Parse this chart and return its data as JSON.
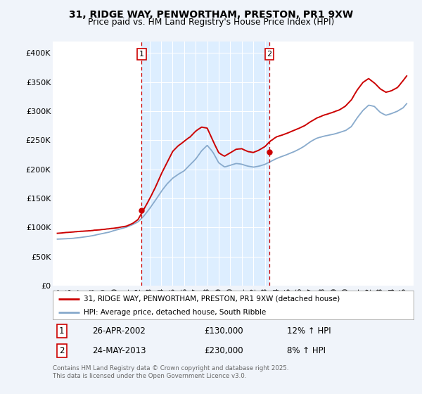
{
  "title": "31, RIDGE WAY, PENWORTHAM, PRESTON, PR1 9XW",
  "subtitle": "Price paid vs. HM Land Registry's House Price Index (HPI)",
  "legend_label_red": "31, RIDGE WAY, PENWORTHAM, PRESTON, PR1 9XW (detached house)",
  "legend_label_blue": "HPI: Average price, detached house, South Ribble",
  "sale1_date": "26-APR-2002",
  "sale1_price": 130000,
  "sale1_year": 2002.31,
  "sale1_hpi": "12% ↑ HPI",
  "sale2_date": "24-MAY-2013",
  "sale2_price": 230000,
  "sale2_year": 2013.39,
  "sale2_hpi": "8% ↑ HPI",
  "footnote": "Contains HM Land Registry data © Crown copyright and database right 2025.\nThis data is licensed under the Open Government Licence v3.0.",
  "ylim": [
    0,
    420000
  ],
  "yticks": [
    0,
    50000,
    100000,
    150000,
    200000,
    250000,
    300000,
    350000,
    400000
  ],
  "ytick_labels": [
    "£0",
    "£50K",
    "£100K",
    "£150K",
    "£200K",
    "£250K",
    "£300K",
    "£350K",
    "£400K"
  ],
  "xlim_left": 1994.6,
  "xlim_right": 2025.9,
  "background_color": "#f0f4fa",
  "plot_bg_color": "#ffffff",
  "highlight_color": "#ddeeff",
  "red_color": "#cc0000",
  "blue_color": "#88aacc",
  "years": [
    1995,
    1995.5,
    1996,
    1996.5,
    1997,
    1997.5,
    1998,
    1998.5,
    1999,
    1999.5,
    2000,
    2000.5,
    2001,
    2001.5,
    2002,
    2002.5,
    2003,
    2003.5,
    2004,
    2004.5,
    2005,
    2005.5,
    2006,
    2006.5,
    2007,
    2007.5,
    2008,
    2008.5,
    2009,
    2009.5,
    2010,
    2010.5,
    2011,
    2011.5,
    2012,
    2012.5,
    2013,
    2013.5,
    2014,
    2014.5,
    2015,
    2015.5,
    2016,
    2016.5,
    2017,
    2017.5,
    2018,
    2018.5,
    2019,
    2019.5,
    2020,
    2020.5,
    2021,
    2021.5,
    2022,
    2022.5,
    2023,
    2023.5,
    2024,
    2024.5,
    2025,
    2025.3
  ],
  "hpi_values": [
    80000,
    80500,
    81000,
    82000,
    83000,
    84500,
    86000,
    88000,
    90000,
    92000,
    95000,
    98000,
    101000,
    105000,
    110000,
    120000,
    133000,
    147000,
    162000,
    175000,
    185000,
    192000,
    198000,
    208000,
    218000,
    232000,
    242000,
    230000,
    212000,
    205000,
    208000,
    211000,
    210000,
    207000,
    205000,
    207000,
    210000,
    215000,
    220000,
    224000,
    228000,
    232000,
    237000,
    243000,
    250000,
    255000,
    258000,
    260000,
    262000,
    265000,
    268000,
    275000,
    290000,
    303000,
    312000,
    310000,
    300000,
    295000,
    298000,
    302000,
    308000,
    315000
  ],
  "red_values": [
    90000,
    91000,
    92000,
    93000,
    93500,
    94000,
    95000,
    96000,
    97000,
    98000,
    99000,
    100500,
    102000,
    106000,
    113000,
    130000,
    148000,
    168000,
    190000,
    210000,
    230000,
    240000,
    248000,
    255000,
    265000,
    272000,
    270000,
    248000,
    228000,
    222000,
    228000,
    234000,
    235000,
    230000,
    228000,
    232000,
    238000,
    248000,
    255000,
    258000,
    262000,
    266000,
    270000,
    275000,
    282000,
    288000,
    292000,
    295000,
    298000,
    302000,
    308000,
    318000,
    335000,
    348000,
    355000,
    348000,
    338000,
    332000,
    335000,
    340000,
    352000,
    360000
  ]
}
